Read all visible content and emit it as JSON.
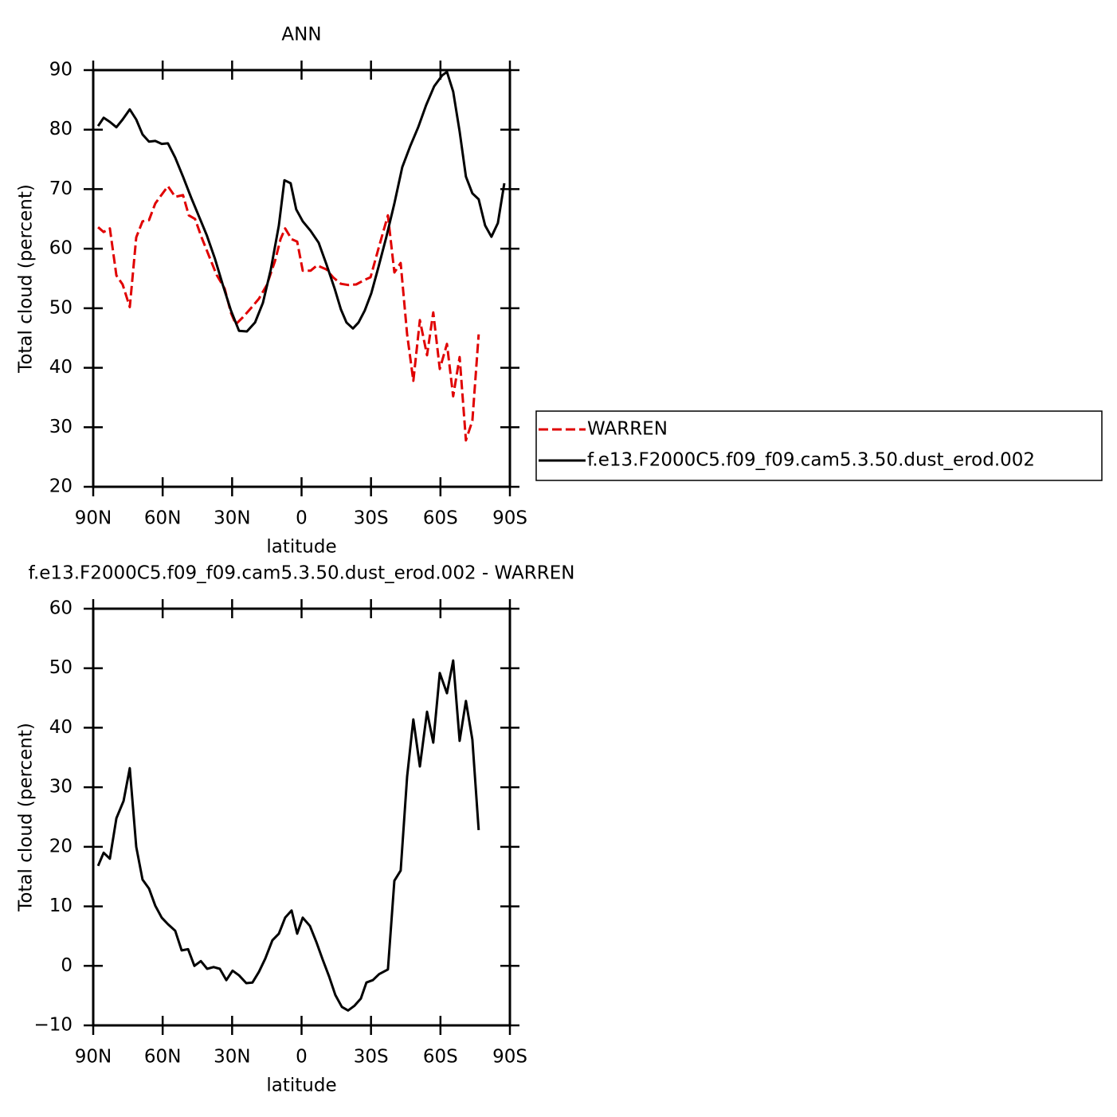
{
  "chart_data": [
    {
      "type": "line",
      "title": "ANN",
      "x_label": "latitude",
      "y_label": "Total cloud (percent)",
      "xlim": [
        90,
        -90
      ],
      "xticks": [
        {
          "value": 90,
          "label": "90N"
        },
        {
          "value": 60,
          "label": "60N"
        },
        {
          "value": 30,
          "label": "30N"
        },
        0,
        {
          "value": -30,
          "label": "30S"
        },
        {
          "value": -60,
          "label": "60S"
        },
        {
          "value": -90,
          "label": "90S"
        }
      ],
      "ylim": [
        20,
        90
      ],
      "yticks": [
        20,
        30,
        40,
        50,
        60,
        70,
        80,
        90
      ],
      "legend": "right",
      "series": [
        {
          "name": "WARREN",
          "color": "#e00000",
          "dashed": true,
          "x": [
            87.9,
            85.5,
            82.8,
            80.0,
            77.3,
            74.2,
            71.4,
            68.7,
            65.9,
            63.2,
            60.4,
            57.7,
            54.6,
            51.2,
            48.7,
            46.0,
            43.2,
            40.1,
            36.7,
            33.2,
            30.5,
            28.4,
            25.3,
            21.9,
            18.4,
            15.0,
            11.5,
            9.1,
            7.1,
            4.3,
            1.9,
            -0.5,
            -3.9,
            -6.7,
            -10.8,
            -13.6,
            -17.0,
            -20.1,
            -23.6,
            -27.0,
            -29.8,
            -33.2,
            -37.3,
            -40.1,
            -42.8,
            -45.6,
            -48.3,
            -51.1,
            -54.2,
            -56.9,
            -59.7,
            -62.8,
            -65.5,
            -68.3,
            -71.0,
            -73.8,
            -76.5
          ],
          "values": [
            63.6,
            62.8,
            63.4,
            55.5,
            54.0,
            50.2,
            61.9,
            64.6,
            64.8,
            67.6,
            69.1,
            70.5,
            68.7,
            69.0,
            65.6,
            65.0,
            61.9,
            58.9,
            55.6,
            53.3,
            49.2,
            47.3,
            48.5,
            50.0,
            51.6,
            53.9,
            57.9,
            61.6,
            63.4,
            61.6,
            61.2,
            56.3,
            56.3,
            57.2,
            56.5,
            55.2,
            54.1,
            53.9,
            54.0,
            54.7,
            55.2,
            60.0,
            65.6,
            56.0,
            57.6,
            45.6,
            37.8,
            48.0,
            42.1,
            49.3,
            39.8,
            44.0,
            35.2,
            41.8,
            27.8,
            31.1,
            45.6
          ]
        },
        {
          "name": "f.e13.F2000C5.f09_f09.cam5.3.50.dust_erod.002",
          "color": "#000000",
          "dashed": false,
          "x": [
            87.9,
            85.5,
            82.8,
            80.0,
            77.3,
            74.2,
            71.4,
            68.7,
            65.9,
            63.2,
            60.4,
            57.7,
            54.6,
            51.2,
            47.7,
            44.3,
            40.9,
            37.4,
            34.0,
            30.5,
            27.0,
            23.6,
            20.1,
            16.7,
            13.3,
            9.8,
            7.4,
            4.7,
            2.3,
            -0.5,
            -3.9,
            -7.4,
            -10.8,
            -14.3,
            -17.0,
            -19.4,
            -22.2,
            -24.6,
            -27.3,
            -30.1,
            -33.2,
            -36.6,
            -40.1,
            -43.5,
            -47.0,
            -50.4,
            -53.8,
            -57.3,
            -60.7,
            -62.8,
            -65.5,
            -68.3,
            -71.0,
            -73.8,
            -76.5,
            -79.3,
            -82.0,
            -84.8,
            -87.6
          ],
          "values": [
            80.6,
            82.0,
            81.3,
            80.4,
            81.7,
            83.4,
            81.7,
            79.2,
            78.0,
            78.1,
            77.6,
            77.7,
            75.3,
            72.1,
            68.6,
            65.4,
            62.2,
            58.3,
            53.9,
            49.6,
            46.2,
            46.1,
            47.6,
            50.9,
            56.5,
            63.9,
            71.5,
            71.0,
            66.6,
            64.6,
            63.0,
            61.0,
            57.3,
            53.3,
            49.8,
            47.6,
            46.6,
            47.6,
            49.6,
            52.5,
            56.9,
            61.9,
            67.6,
            73.7,
            77.3,
            80.4,
            84.1,
            87.3,
            89.1,
            89.7,
            86.4,
            79.7,
            72.1,
            69.3,
            68.3,
            63.9,
            62.0,
            64.3,
            71.0
          ]
        }
      ]
    },
    {
      "type": "line",
      "title": "f.e13.F2000C5.f09_f09.cam5.3.50.dust_erod.002 - WARREN",
      "x_label": "latitude",
      "y_label": "Total cloud (percent)",
      "xlim": [
        90,
        -90
      ],
      "xticks": [
        {
          "value": 90,
          "label": "90N"
        },
        {
          "value": 60,
          "label": "60N"
        },
        {
          "value": 30,
          "label": "30N"
        },
        0,
        {
          "value": -30,
          "label": "30S"
        },
        {
          "value": -60,
          "label": "60S"
        },
        {
          "value": -90,
          "label": "90S"
        }
      ],
      "ylim": [
        -10,
        60
      ],
      "yticks": [
        {
          "value": -10,
          "label": "−10"
        },
        0,
        10,
        20,
        30,
        40,
        50,
        60
      ],
      "series": [
        {
          "color": "#000000",
          "dashed": false,
          "x": [
            87.9,
            85.5,
            82.8,
            80.0,
            76.9,
            74.2,
            71.4,
            68.7,
            65.9,
            63.2,
            60.4,
            57.7,
            54.6,
            51.8,
            49.0,
            46.3,
            43.5,
            40.8,
            38.0,
            35.3,
            32.5,
            29.8,
            27.0,
            23.9,
            21.2,
            18.4,
            15.7,
            12.6,
            9.8,
            7.1,
            4.3,
            1.9,
            -0.5,
            -3.6,
            -6.4,
            -9.1,
            -11.9,
            -14.6,
            -17.4,
            -20.1,
            -22.9,
            -25.6,
            -28.0,
            -30.8,
            -33.5,
            -37.3,
            -40.1,
            -42.8,
            -45.6,
            -48.3,
            -51.1,
            -54.2,
            -56.9,
            -59.7,
            -62.8,
            -65.5,
            -68.3,
            -71.0,
            -73.8,
            -76.5
          ],
          "values": [
            16.8,
            19.0,
            18.0,
            24.8,
            27.7,
            33.2,
            20.0,
            14.5,
            13.0,
            10.1,
            8.1,
            7.0,
            5.9,
            2.6,
            2.8,
            0.0,
            0.8,
            -0.5,
            -0.2,
            -0.5,
            -2.4,
            -0.8,
            -1.6,
            -2.9,
            -2.8,
            -1.0,
            1.2,
            4.3,
            5.4,
            8.1,
            9.3,
            5.4,
            8.1,
            6.7,
            4.0,
            1.1,
            -1.8,
            -4.9,
            -6.9,
            -7.5,
            -6.7,
            -5.5,
            -2.8,
            -2.4,
            -1.4,
            -0.6,
            14.3,
            16.0,
            31.8,
            41.4,
            33.5,
            42.7,
            37.5,
            49.2,
            45.8,
            51.3,
            37.8,
            44.5,
            38.0,
            22.8
          ]
        }
      ]
    }
  ]
}
